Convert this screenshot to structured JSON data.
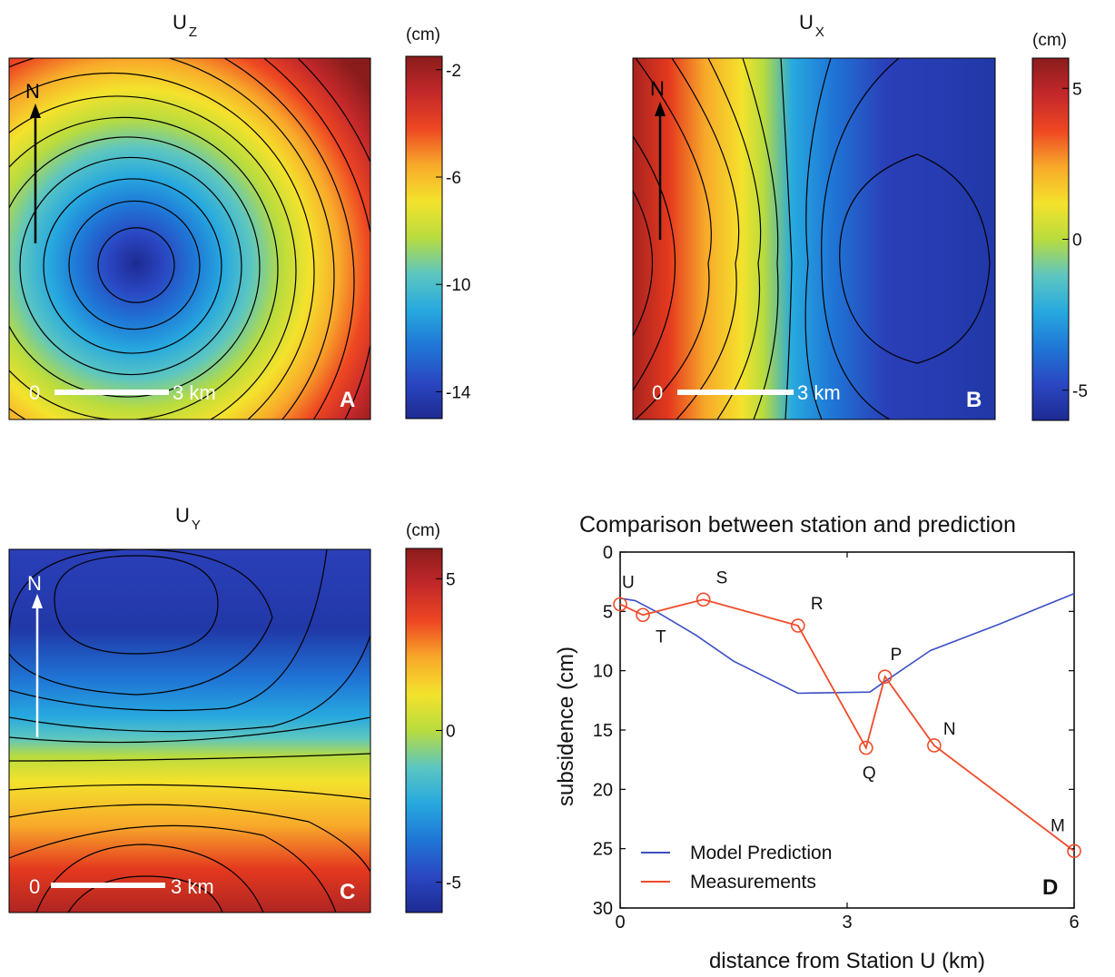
{
  "colormap": [
    "#1e2a92",
    "#2a47c2",
    "#1f76d6",
    "#27a9df",
    "#5dc6c0",
    "#b9dc3e",
    "#f4e22c",
    "#f8a92a",
    "#ee4722",
    "#c3282a",
    "#8b1c1c"
  ],
  "contour_color": "#000000",
  "maps": [
    {
      "id": "A",
      "title_main": "U",
      "title_sub": "Z",
      "unit": "(cm)",
      "scale_start": "0",
      "scale_end": "3 km",
      "north_label": "N",
      "north_color": "#000000",
      "letter": "A",
      "colorbar_ticks": [
        "-2",
        "-6",
        "-10",
        "-14"
      ],
      "colorbar_tick_values": [
        -2,
        -6,
        -10,
        -14
      ],
      "colorbar_range": [
        -15,
        -1.5
      ],
      "field": "bowl",
      "contours": 12
    },
    {
      "id": "B",
      "title_main": "U",
      "title_sub": "X",
      "unit": "(cm)",
      "scale_start": "0",
      "scale_end": "3 km",
      "north_label": "N",
      "north_color": "#000000",
      "letter": "B",
      "colorbar_ticks": [
        "5",
        "0",
        "-5"
      ],
      "colorbar_tick_values": [
        5,
        0,
        -5
      ],
      "colorbar_range": [
        -6,
        6
      ],
      "field": "dipole_x",
      "contours": 11
    },
    {
      "id": "C",
      "title_main": "U",
      "title_sub": "Y",
      "unit": "(cm)",
      "scale_start": "0",
      "scale_end": "3 km",
      "north_label": "N",
      "north_color": "#ffffff",
      "letter": "C",
      "colorbar_ticks": [
        "5",
        "0",
        "-5"
      ],
      "colorbar_tick_values": [
        5,
        0,
        -5
      ],
      "colorbar_range": [
        -6,
        6
      ],
      "field": "dipole_y",
      "contours": 11
    }
  ],
  "chart_data": {
    "type": "line",
    "title": "Comparison between station and prediction",
    "xlabel": "distance from Station U (km)",
    "ylabel": "subsidence (cm)",
    "xlim": [
      0,
      6
    ],
    "ylim": [
      0,
      30
    ],
    "y_reversed": true,
    "xticks": [
      0,
      3,
      6
    ],
    "yticks": [
      0,
      5,
      10,
      15,
      20,
      25,
      30
    ],
    "panel_letter": "D",
    "series": [
      {
        "name": "Model Prediction",
        "color": "#3b4fc4",
        "x": [
          0,
          0.2,
          0.5,
          1.0,
          1.5,
          2.35,
          3.3,
          3.5,
          4.1,
          5.0,
          6.0
        ],
        "y": [
          3.9,
          4.1,
          5.1,
          7.0,
          9.2,
          11.9,
          11.8,
          10.9,
          8.3,
          6.1,
          3.5
        ]
      },
      {
        "name": "Measurements",
        "color": "#f04b2a",
        "markers": true,
        "x": [
          0,
          0.3,
          1.1,
          2.35,
          3.25,
          3.5,
          4.15,
          6.0
        ],
        "y": [
          4.4,
          5.3,
          4.0,
          6.2,
          16.5,
          10.5,
          16.3,
          25.2
        ],
        "labels": [
          "U",
          "T",
          "S",
          "R",
          "Q",
          "P",
          "N",
          "M"
        ]
      }
    ]
  }
}
